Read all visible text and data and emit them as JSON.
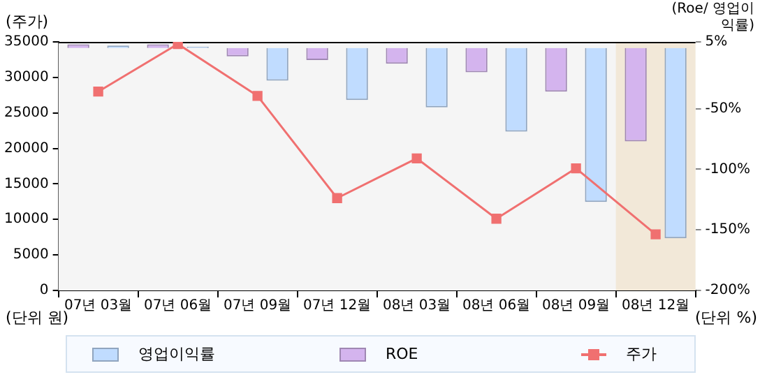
{
  "chart_data": {
    "type": "bar",
    "categories": [
      "07년 03월",
      "07년 06월",
      "07년 09월",
      "07년 12월",
      "08년 03월",
      "08년 06월",
      "08년 09월",
      "08년 12월"
    ],
    "series": [
      {
        "name": "영업이익률",
        "axis": "y2",
        "color": "#c0dcff",
        "values": [
          2,
          1,
          -27,
          -43,
          -49,
          -69,
          -127,
          -157
        ]
      },
      {
        "name": "ROE",
        "axis": "y2",
        "color": "#d4b4ee",
        "values": [
          3,
          3,
          -7,
          -10,
          -13,
          -20,
          -36,
          -77
        ]
      },
      {
        "name": "주가",
        "type": "line",
        "color": "#f07070",
        "values": [
          28000,
          34700,
          27400,
          13000,
          18600,
          10100,
          17200,
          7900
        ]
      }
    ],
    "ylabel": "(주가)",
    "y2label": "(Roe/ 영업이익률)",
    "annotations": [
      "(단위 원)",
      "(단위 %)"
    ],
    "ylim": [
      0,
      35000
    ],
    "yticks": [
      0,
      5000,
      10000,
      15000,
      20000,
      25000,
      30000,
      35000
    ],
    "y2lim": [
      -200,
      5
    ],
    "y2ticks": [
      {
        "value": 5,
        "label": "5%"
      },
      {
        "value": -50,
        "label": "-50%"
      },
      {
        "value": -100,
        "label": "-100%"
      },
      {
        "value": -150,
        "label": "-150%"
      },
      {
        "value": -200,
        "label": "-200%"
      }
    ],
    "bands": [
      {
        "axis": "x",
        "from": "08년 12월",
        "to": "08년 12월",
        "color": "#f2e8d8"
      }
    ],
    "grid": false,
    "legend": "bottom",
    "marker": "square",
    "line_style": "solid"
  }
}
